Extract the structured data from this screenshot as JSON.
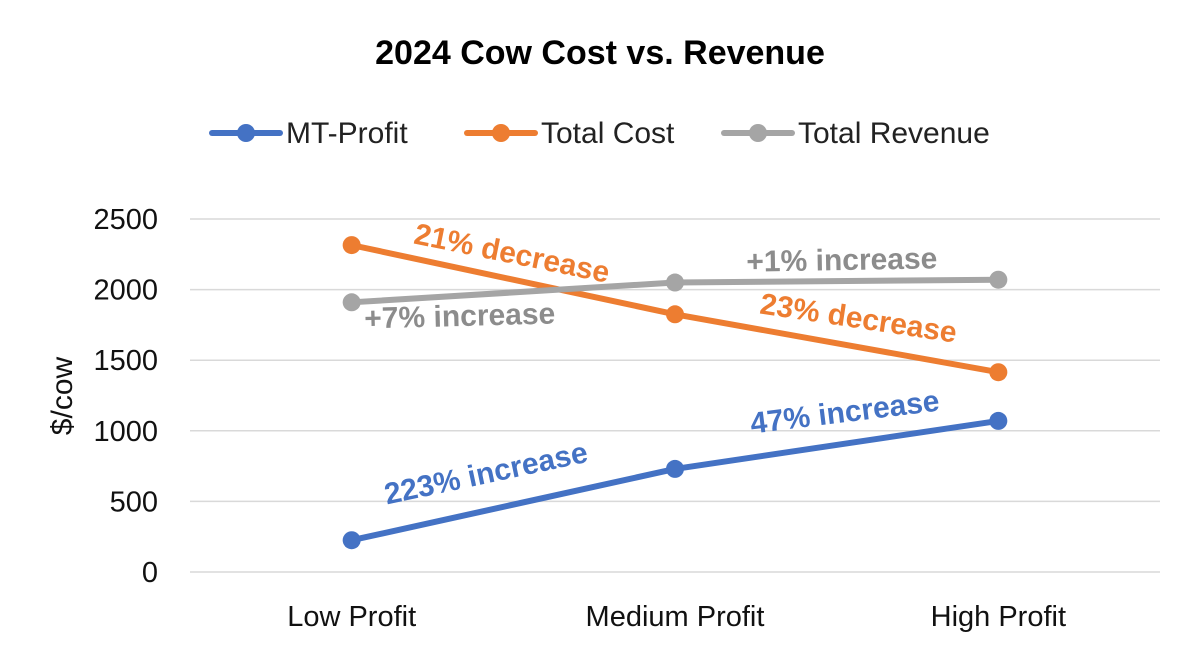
{
  "chart_data": {
    "type": "line",
    "title": "2024 Cow Cost vs. Revenue",
    "xlabel": "",
    "ylabel": "$/cow",
    "categories": [
      "Low Profit",
      "Medium Profit",
      "High Profit"
    ],
    "ylim": [
      0,
      2500
    ],
    "yticks": [
      0,
      500,
      1000,
      1500,
      2000,
      2500
    ],
    "grid": true,
    "legend_position": "top",
    "series": [
      {
        "name": "MT-Profit",
        "color": "#4472C4",
        "values": [
          225,
          730,
          1070
        ]
      },
      {
        "name": "Total Cost",
        "color": "#ED7D31",
        "values": [
          2315,
          1825,
          1415
        ]
      },
      {
        "name": "Total Revenue",
        "color": "#A5A5A5",
        "values": [
          1910,
          2050,
          2070
        ]
      }
    ],
    "annotations": [
      {
        "text": "21% decrease",
        "color": "#ED7D31"
      },
      {
        "text": "+1% increase",
        "color": "#8C8C8C"
      },
      {
        "text": "+7% increase",
        "color": "#8C8C8C"
      },
      {
        "text": "23% decrease",
        "color": "#ED7D31"
      },
      {
        "text": "47% increase",
        "color": "#4472C4"
      },
      {
        "text": "223% increase",
        "color": "#4472C4"
      }
    ]
  }
}
